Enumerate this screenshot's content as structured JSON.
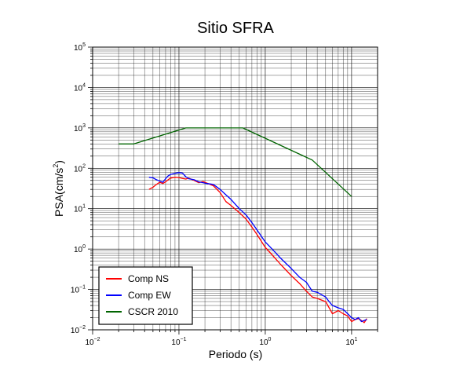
{
  "chart_data": {
    "type": "line",
    "title": "Sitio SFRA",
    "xlabel": "Periodo (s)",
    "ylabel": {
      "base": "PSA(cm/s",
      "sup": "2",
      "end": ")"
    },
    "xscale": "log",
    "yscale": "log",
    "xlim": [
      0.01,
      20
    ],
    "ylim": [
      0.01,
      100000
    ],
    "grid": true,
    "legend_position": "bottom-left",
    "x_ticks": [
      {
        "base": "10",
        "exp": "−2"
      },
      {
        "base": "10",
        "exp": "−1"
      },
      {
        "base": "10",
        "exp": "0"
      },
      {
        "base": "10",
        "exp": "1"
      }
    ],
    "y_ticks": [
      {
        "base": "10",
        "exp": "−2"
      },
      {
        "base": "10",
        "exp": "−1"
      },
      {
        "base": "10",
        "exp": "0"
      },
      {
        "base": "10",
        "exp": "1"
      },
      {
        "base": "10",
        "exp": "2"
      },
      {
        "base": "10",
        "exp": "3"
      },
      {
        "base": "10",
        "exp": "4"
      },
      {
        "base": "10",
        "exp": "5"
      }
    ],
    "series": [
      {
        "name": "Comp NS",
        "color": "#ff0000",
        "x": [
          0.045,
          0.05,
          0.055,
          0.06,
          0.065,
          0.07,
          0.075,
          0.08,
          0.09,
          0.1,
          0.11,
          0.12,
          0.13,
          0.15,
          0.17,
          0.19,
          0.21,
          0.25,
          0.3,
          0.35,
          0.4,
          0.5,
          0.6,
          0.7,
          0.8,
          1.0,
          1.2,
          1.5,
          2.0,
          2.5,
          3.0,
          3.5,
          4.0,
          5.0,
          5.5,
          6.0,
          7.0,
          8.0,
          9.0,
          10.0,
          11.0,
          12.0,
          13.0,
          14.0,
          15.0
        ],
        "y": [
          30,
          34,
          40,
          45,
          42,
          46,
          52,
          57,
          60,
          59,
          56,
          54,
          57,
          50,
          44,
          47,
          43,
          37,
          25,
          15,
          12,
          8,
          5.5,
          3.5,
          2.3,
          1.1,
          0.72,
          0.42,
          0.22,
          0.14,
          0.09,
          0.065,
          0.06,
          0.05,
          0.035,
          0.025,
          0.03,
          0.025,
          0.022,
          0.016,
          0.018,
          0.019,
          0.017,
          0.015,
          0.019
        ]
      },
      {
        "name": "Comp EW",
        "color": "#0000ff",
        "x": [
          0.045,
          0.05,
          0.055,
          0.06,
          0.065,
          0.07,
          0.075,
          0.08,
          0.09,
          0.1,
          0.11,
          0.12,
          0.13,
          0.15,
          0.17,
          0.19,
          0.21,
          0.25,
          0.3,
          0.35,
          0.4,
          0.5,
          0.6,
          0.7,
          0.8,
          1.0,
          1.2,
          1.5,
          2.0,
          2.5,
          3.0,
          3.5,
          4.0,
          5.0,
          5.5,
          6.0,
          7.0,
          8.0,
          9.0,
          10.0,
          11.0,
          12.0,
          13.0,
          14.0,
          15.0
        ],
        "y": [
          60,
          58,
          52,
          48,
          45,
          55,
          65,
          70,
          75,
          78,
          76,
          62,
          55,
          52,
          46,
          44,
          42,
          40,
          30,
          22,
          17,
          10,
          7,
          4.5,
          3,
          1.5,
          1.0,
          0.6,
          0.33,
          0.2,
          0.15,
          0.09,
          0.085,
          0.065,
          0.05,
          0.04,
          0.035,
          0.032,
          0.025,
          0.02,
          0.018,
          0.02,
          0.016,
          0.017,
          0.018
        ]
      },
      {
        "name": "CSCR 2010",
        "color": "#006400",
        "x": [
          0.02,
          0.03,
          0.12,
          0.55,
          3.5,
          10
        ],
        "y": [
          400,
          400,
          1000,
          1000,
          160,
          20
        ]
      }
    ]
  }
}
